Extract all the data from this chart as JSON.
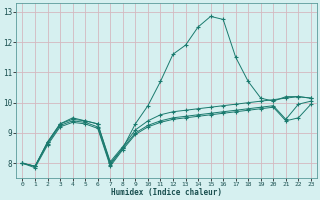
{
  "xlabel": "Humidex (Indice chaleur)",
  "ylabel": "",
  "background_color": "#d6f0f0",
  "grid_color": "#d4b8c0",
  "line_color": "#1a7a6e",
  "xlim": [
    -0.5,
    23.5
  ],
  "ylim": [
    7.5,
    13.3
  ],
  "xticks": [
    0,
    1,
    2,
    3,
    4,
    5,
    6,
    7,
    8,
    9,
    10,
    11,
    12,
    13,
    14,
    15,
    16,
    17,
    18,
    19,
    20,
    21,
    22,
    23
  ],
  "yticks": [
    8,
    9,
    10,
    11,
    12,
    13
  ],
  "series": [
    {
      "x": [
        0,
        1,
        2,
        3,
        4,
        5,
        6,
        7,
        8,
        9,
        10,
        11,
        12,
        13,
        14,
        15,
        16,
        17,
        18,
        19,
        20,
        21,
        22,
        23
      ],
      "y": [
        8.0,
        7.9,
        8.7,
        9.3,
        9.5,
        9.4,
        9.3,
        8.0,
        8.5,
        9.3,
        9.9,
        10.7,
        11.6,
        11.9,
        12.5,
        12.85,
        12.75,
        11.5,
        10.7,
        10.15,
        10.05,
        10.2,
        10.2,
        10.15
      ]
    },
    {
      "x": [
        0,
        1,
        2,
        3,
        4,
        5,
        6,
        7,
        8,
        9,
        10,
        11,
        12,
        13,
        14,
        15,
        16,
        17,
        18,
        19,
        20,
        21,
        22,
        23
      ],
      "y": [
        8.0,
        7.9,
        8.7,
        9.3,
        9.45,
        9.4,
        9.3,
        8.05,
        8.55,
        9.1,
        9.4,
        9.6,
        9.7,
        9.75,
        9.8,
        9.85,
        9.9,
        9.95,
        10.0,
        10.05,
        10.1,
        10.15,
        10.2,
        10.15
      ]
    },
    {
      "x": [
        0,
        1,
        2,
        3,
        4,
        5,
        6,
        7,
        8,
        9,
        10,
        11,
        12,
        13,
        14,
        15,
        16,
        17,
        18,
        19,
        20,
        21,
        22,
        23
      ],
      "y": [
        8.0,
        7.9,
        8.65,
        9.25,
        9.4,
        9.35,
        9.2,
        7.95,
        8.5,
        9.0,
        9.25,
        9.4,
        9.5,
        9.55,
        9.6,
        9.65,
        9.7,
        9.75,
        9.8,
        9.85,
        9.9,
        9.45,
        9.95,
        10.05
      ]
    },
    {
      "x": [
        0,
        1,
        2,
        3,
        4,
        5,
        6,
        7,
        8,
        9,
        10,
        11,
        12,
        13,
        14,
        15,
        16,
        17,
        18,
        19,
        20,
        21,
        22,
        23
      ],
      "y": [
        8.0,
        7.85,
        8.6,
        9.2,
        9.35,
        9.3,
        9.15,
        7.9,
        8.45,
        8.95,
        9.2,
        9.35,
        9.45,
        9.5,
        9.55,
        9.6,
        9.65,
        9.7,
        9.75,
        9.8,
        9.85,
        9.4,
        9.5,
        9.95
      ]
    }
  ]
}
